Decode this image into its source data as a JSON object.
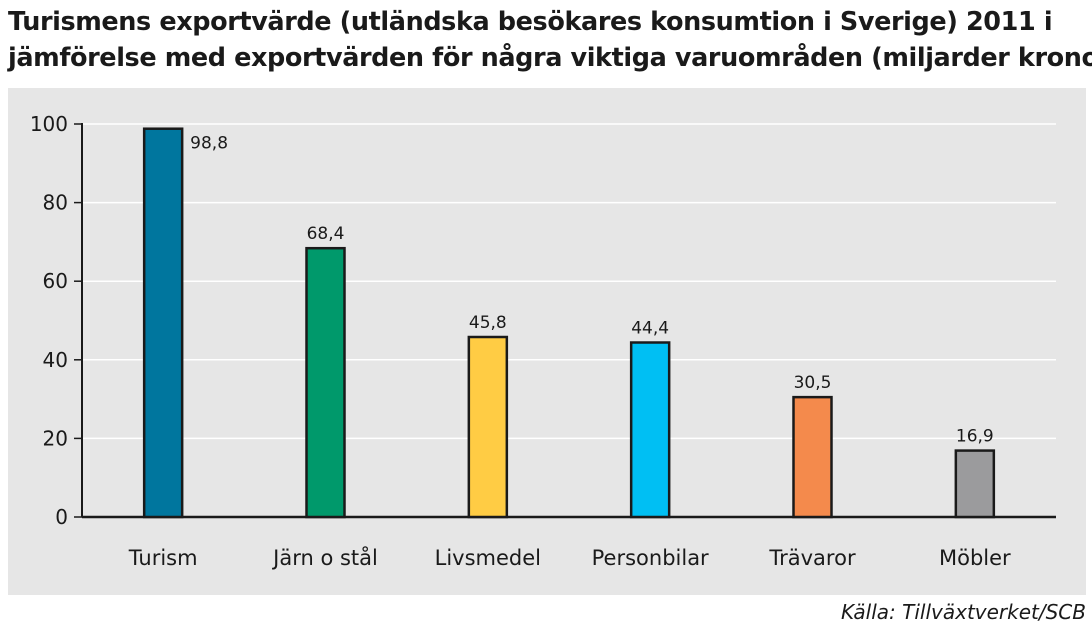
{
  "chart_data": {
    "type": "bar",
    "title_lines": [
      "Turismens exportvärde (utländska besökares konsumtion i Sverige) 2011 i",
      "jämförelse med exportvärden för några viktiga varuområden (miljarder kronor)"
    ],
    "categories": [
      "Turism",
      "Järn o stål",
      "Livsmedel",
      "Personbilar",
      "Trävaror",
      "Möbler"
    ],
    "values": [
      98.8,
      68.4,
      45.8,
      44.4,
      30.5,
      16.9
    ],
    "value_labels": [
      "98,8",
      "68,4",
      "45,8",
      "44,4",
      "30,5",
      "16,9"
    ],
    "colors": [
      "#00769e",
      "#00996b",
      "#ffcc44",
      "#00bff3",
      "#f48a4c",
      "#9b9b9d"
    ],
    "ylim": [
      0,
      100
    ],
    "yticks": [
      0,
      20,
      40,
      60,
      80,
      100
    ],
    "grid": true,
    "xlabel": "",
    "ylabel": "",
    "source": "Källa: Tillväxtverket/SCB"
  }
}
